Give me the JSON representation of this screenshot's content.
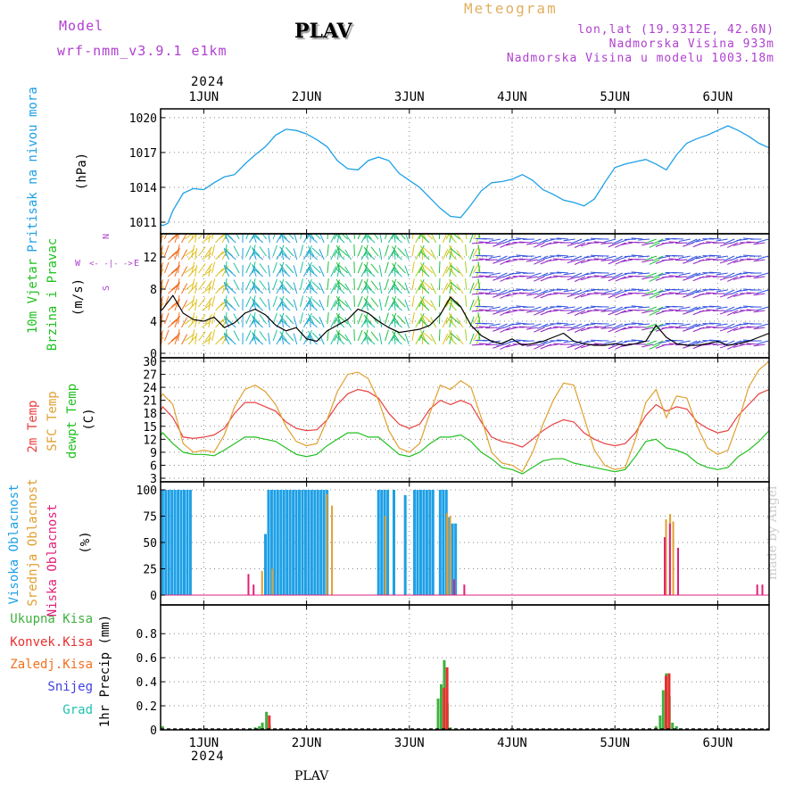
{
  "header": {
    "model_label": "Model",
    "model_name": "wrf-nmm_v3.9.1 e1km",
    "station": "PLAV",
    "meteogram": "Meteogram",
    "lonlat": "lon,lat (19.9312E, 42.6N)",
    "altitude": "Nadmorska Visina 933m",
    "altitude_model": "Nadmorska Visina u modelu 1003.18m",
    "year": "2024",
    "footer_station": "PLAV",
    "made_by": "made by Angel"
  },
  "colors": {
    "pressure": "#1ea0e6",
    "temp2m": "#e84040",
    "sfc": "#e0a030",
    "dewpt": "#20c020",
    "high_cloud": "#1ea0e6",
    "mid_cloud": "#e0a030",
    "low_cloud": "#e0207a",
    "rain": "#40b040",
    "convective": "#e83030",
    "freezing": "#f07020",
    "snow": "#4040e0",
    "hail": "#20c0b0",
    "axis_purple": "#b040d0"
  },
  "chart_data": [
    {
      "type": "line",
      "panel": "pressure",
      "ylabel_main": "Pritisak na nivou mora",
      "ylabel_unit": "(hPa)",
      "x_range_days": [
        0.58,
        6.5
      ],
      "x_ticks": [
        "1JUN",
        "2JUN",
        "3JUN",
        "4JUN",
        "5JUN",
        "6JUN"
      ],
      "ylim": [
        1010,
        1020.3
      ],
      "yticks": [
        1011,
        1014,
        1017,
        1020
      ],
      "grid": true,
      "series": [
        {
          "x": [
            0.5,
            0.55,
            0.6,
            0.65,
            0.7,
            0.8,
            0.9,
            1.0,
            1.1,
            1.2,
            1.3,
            1.4,
            1.5,
            1.6,
            1.7,
            1.8,
            1.9,
            2.0,
            2.1,
            2.2,
            2.3,
            2.4,
            2.5,
            2.6,
            2.7,
            2.8,
            2.9,
            3.0,
            3.1,
            3.2,
            3.3,
            3.4,
            3.5,
            3.6,
            3.7,
            3.8,
            3.9,
            4.0,
            4.1,
            4.2,
            4.3,
            4.4,
            4.5,
            4.6,
            4.7,
            4.8,
            4.9,
            5.0,
            5.1,
            5.2,
            5.3,
            5.4,
            5.5,
            5.6,
            5.7,
            5.8,
            5.9,
            6.0,
            6.1,
            6.2,
            6.3,
            6.4,
            6.5
          ],
          "values": [
            1012.3,
            1011.0,
            1010.7,
            1010.9,
            1012.0,
            1013.5,
            1013.9,
            1013.8,
            1014.4,
            1014.9,
            1015.1,
            1016.0,
            1016.8,
            1017.5,
            1018.5,
            1019.0,
            1018.9,
            1018.6,
            1018.1,
            1017.5,
            1016.3,
            1015.6,
            1015.5,
            1016.3,
            1016.6,
            1016.3,
            1015.2,
            1014.6,
            1014.0,
            1013.1,
            1012.2,
            1011.5,
            1011.4,
            1012.5,
            1013.7,
            1014.4,
            1014.5,
            1014.7,
            1015.1,
            1014.6,
            1013.8,
            1013.4,
            1012.9,
            1012.7,
            1012.4,
            1013.0,
            1014.4,
            1015.7,
            1016.0,
            1016.2,
            1016.4,
            1016.0,
            1015.5,
            1016.8,
            1017.8,
            1018.2,
            1018.5,
            1018.9,
            1019.3,
            1018.9,
            1018.4,
            1017.8,
            1017.4
          ]
        }
      ]
    },
    {
      "type": "line",
      "panel": "wind",
      "ylabel_main": "10m Vjetar",
      "ylabel_sub": "Brzina i Pravac",
      "ylabel_unit": "(m/s)",
      "compass": [
        "N",
        "W",
        "E",
        "S"
      ],
      "ylim": [
        0,
        14
      ],
      "yticks": [
        0,
        4,
        8,
        12
      ],
      "grid": true,
      "series": [
        {
          "x": [
            0.5,
            0.6,
            0.7,
            0.8,
            0.9,
            1.0,
            1.1,
            1.2,
            1.3,
            1.4,
            1.5,
            1.6,
            1.7,
            1.8,
            1.9,
            2.0,
            2.1,
            2.2,
            2.3,
            2.4,
            2.5,
            2.6,
            2.7,
            2.8,
            2.9,
            3.0,
            3.1,
            3.2,
            3.3,
            3.4,
            3.5,
            3.6,
            3.7,
            3.8,
            3.9,
            4.0,
            4.1,
            4.2,
            4.3,
            4.4,
            4.5,
            4.6,
            4.7,
            4.8,
            4.9,
            5.0,
            5.1,
            5.2,
            5.3,
            5.4,
            5.5,
            5.6,
            5.7,
            5.8,
            5.9,
            6.0,
            6.1,
            6.2,
            6.3,
            6.4,
            6.5
          ],
          "values": [
            4.5,
            5.5,
            7.2,
            5.0,
            4.2,
            4.0,
            4.5,
            3.2,
            3.8,
            5.0,
            5.5,
            4.8,
            3.5,
            2.8,
            3.2,
            1.8,
            1.5,
            2.8,
            3.5,
            4.2,
            5.5,
            5.0,
            4.0,
            3.2,
            2.6,
            2.8,
            3.0,
            3.5,
            4.8,
            7.0,
            5.8,
            3.5,
            2.2,
            1.5,
            1.2,
            1.8,
            1.0,
            1.2,
            1.5,
            2.0,
            2.5,
            1.5,
            1.2,
            1.0,
            1.0,
            1.2,
            1.0,
            1.2,
            1.5,
            3.5,
            2.0,
            1.2,
            1.0,
            1.0,
            1.2,
            1.5,
            1.0,
            1.2,
            1.5,
            2.0,
            2.5
          ]
        }
      ]
    },
    {
      "type": "line",
      "panel": "temperature",
      "ylabel_1": "2m Temp",
      "ylabel_2": "SFC Temp",
      "ylabel_3": "dewpt Temp",
      "ylabel_unit": "(C)",
      "ylim": [
        3,
        30
      ],
      "yticks": [
        3,
        6,
        9,
        12,
        15,
        18,
        21,
        24,
        27,
        30
      ],
      "grid": true,
      "series": [
        {
          "name": "2m Temp",
          "x": [
            0.5,
            0.6,
            0.7,
            0.8,
            0.9,
            1.0,
            1.1,
            1.2,
            1.3,
            1.4,
            1.5,
            1.6,
            1.7,
            1.8,
            1.9,
            2.0,
            2.1,
            2.2,
            2.3,
            2.4,
            2.5,
            2.6,
            2.7,
            2.8,
            2.9,
            3.0,
            3.1,
            3.2,
            3.3,
            3.4,
            3.5,
            3.6,
            3.7,
            3.8,
            3.9,
            4.0,
            4.1,
            4.2,
            4.3,
            4.4,
            4.5,
            4.6,
            4.7,
            4.8,
            4.9,
            5.0,
            5.1,
            5.2,
            5.3,
            5.4,
            5.5,
            5.6,
            5.7,
            5.8,
            5.9,
            6.0,
            6.1,
            6.2,
            6.3,
            6.4,
            6.5
          ],
          "values": [
            15.0,
            19.5,
            17.0,
            12.5,
            12.2,
            12.5,
            13.0,
            14.5,
            18.0,
            20.5,
            20.5,
            19.5,
            18.5,
            16.0,
            14.5,
            14.0,
            14.2,
            16.5,
            20.0,
            22.5,
            23.5,
            23.0,
            21.5,
            18.0,
            15.5,
            14.5,
            15.5,
            19.0,
            21.0,
            20.0,
            21.0,
            20.0,
            16.0,
            12.5,
            11.5,
            11.0,
            10.2,
            12.0,
            14.0,
            15.5,
            16.5,
            16.0,
            13.5,
            12.0,
            11.0,
            10.5,
            11.0,
            13.5,
            17.5,
            20.0,
            18.5,
            19.5,
            19.0,
            16.0,
            14.5,
            13.5,
            14.0,
            17.5,
            20.0,
            22.5,
            23.5
          ]
        },
        {
          "name": "SFC Temp",
          "x": [
            0.5,
            0.6,
            0.7,
            0.8,
            0.9,
            1.0,
            1.1,
            1.2,
            1.3,
            1.4,
            1.5,
            1.6,
            1.7,
            1.8,
            1.9,
            2.0,
            2.1,
            2.2,
            2.3,
            2.4,
            2.5,
            2.6,
            2.7,
            2.8,
            2.9,
            3.0,
            3.1,
            3.2,
            3.3,
            3.4,
            3.5,
            3.6,
            3.7,
            3.8,
            3.9,
            4.0,
            4.1,
            4.2,
            4.3,
            4.4,
            4.5,
            4.6,
            4.7,
            4.8,
            4.9,
            5.0,
            5.1,
            5.2,
            5.3,
            5.4,
            5.5,
            5.6,
            5.7,
            5.8,
            5.9,
            6.0,
            6.1,
            6.2,
            6.3,
            6.4,
            6.5
          ],
          "values": [
            18.0,
            22.5,
            20.0,
            11.0,
            9.0,
            9.5,
            9.0,
            13.0,
            19.5,
            23.5,
            24.5,
            23.0,
            20.0,
            15.0,
            11.5,
            10.5,
            11.0,
            16.5,
            23.0,
            27.0,
            27.5,
            26.0,
            21.0,
            14.0,
            10.0,
            9.0,
            11.0,
            18.0,
            24.5,
            23.5,
            25.5,
            24.0,
            17.0,
            9.0,
            6.5,
            6.0,
            4.5,
            9.0,
            15.5,
            21.0,
            25.0,
            24.5,
            17.0,
            9.5,
            6.0,
            5.0,
            5.5,
            12.0,
            20.5,
            23.5,
            17.0,
            22.0,
            21.5,
            15.0,
            10.0,
            8.5,
            9.5,
            16.0,
            24.0,
            28.0,
            30.0
          ]
        },
        {
          "name": "dewpt Temp",
          "x": [
            0.5,
            0.6,
            0.7,
            0.8,
            0.9,
            1.0,
            1.1,
            1.2,
            1.3,
            1.4,
            1.5,
            1.6,
            1.7,
            1.8,
            1.9,
            2.0,
            2.1,
            2.2,
            2.3,
            2.4,
            2.5,
            2.6,
            2.7,
            2.8,
            2.9,
            3.0,
            3.1,
            3.2,
            3.3,
            3.4,
            3.5,
            3.6,
            3.7,
            3.8,
            3.9,
            4.0,
            4.1,
            4.2,
            4.3,
            4.4,
            4.5,
            4.6,
            4.7,
            4.8,
            4.9,
            5.0,
            5.1,
            5.2,
            5.3,
            5.4,
            5.5,
            5.6,
            5.7,
            5.8,
            5.9,
            6.0,
            6.1,
            6.2,
            6.3,
            6.4,
            6.5
          ],
          "values": [
            10.5,
            13.5,
            11.0,
            9.0,
            8.5,
            8.5,
            8.2,
            9.5,
            11.0,
            12.5,
            12.5,
            12.0,
            11.5,
            10.0,
            8.5,
            8.0,
            8.5,
            10.5,
            12.0,
            13.5,
            13.5,
            12.5,
            12.5,
            10.5,
            8.5,
            8.0,
            9.0,
            11.0,
            12.5,
            12.5,
            13.0,
            11.5,
            9.0,
            7.5,
            5.5,
            5.0,
            4.0,
            5.5,
            7.0,
            7.5,
            7.5,
            6.5,
            6.0,
            5.5,
            5.0,
            4.5,
            5.0,
            8.0,
            11.5,
            12.0,
            10.0,
            9.5,
            8.5,
            6.5,
            5.5,
            5.0,
            5.5,
            8.0,
            9.5,
            11.5,
            14.0
          ]
        }
      ]
    },
    {
      "type": "bar",
      "panel": "clouds",
      "ylabel_1": "Visoka Oblacnost",
      "ylabel_2": "Srednja Oblacnost",
      "ylabel_3": "Niska Oblacnost",
      "ylabel_unit": "(%)",
      "ylim": [
        0,
        100
      ],
      "yticks": [
        0,
        25,
        50,
        75,
        100
      ],
      "grid": true,
      "series": [
        {
          "name": "Visoka Oblacnost",
          "x": [
            0.6,
            0.63,
            0.66,
            0.69,
            0.72,
            0.75,
            0.78,
            0.81,
            0.84,
            0.87,
            1.6,
            1.63,
            1.66,
            1.69,
            1.72,
            1.75,
            1.78,
            1.81,
            1.84,
            1.87,
            1.9,
            1.93,
            1.96,
            1.99,
            2.02,
            2.05,
            2.08,
            2.11,
            2.14,
            2.17,
            2.2,
            2.7,
            2.73,
            2.76,
            2.79,
            2.85,
            2.96,
            3.05,
            3.08,
            3.11,
            3.14,
            3.17,
            3.2,
            3.23,
            3.3,
            3.33,
            3.36,
            3.39,
            3.42,
            3.45
          ],
          "values": [
            100,
            100,
            100,
            100,
            100,
            100,
            100,
            100,
            100,
            100,
            58,
            100,
            100,
            100,
            100,
            100,
            100,
            100,
            100,
            100,
            100,
            100,
            100,
            100,
            100,
            100,
            100,
            100,
            100,
            100,
            100,
            100,
            100,
            100,
            100,
            100,
            95,
            100,
            100,
            100,
            100,
            100,
            100,
            100,
            100,
            100,
            100,
            74,
            68,
            68
          ]
        },
        {
          "name": "Srednja Oblacnost",
          "x": [
            1.55,
            1.65,
            2.18,
            2.23,
            2.75,
            3.35,
            3.38,
            5.48,
            5.52,
            5.55,
            6.5
          ],
          "values": [
            23,
            25,
            96,
            85,
            75,
            78,
            75,
            72,
            77,
            70,
            10
          ]
        },
        {
          "name": "Niska Oblacnost",
          "x": [
            1.4,
            1.45,
            3.4,
            3.5,
            5.45,
            5.5,
            5.58,
            6.35,
            6.4
          ],
          "values": [
            20,
            10,
            15,
            10,
            55,
            68,
            45,
            10,
            10
          ]
        }
      ]
    },
    {
      "type": "bar",
      "panel": "precip",
      "ylabel_1": "Ukupna Kisa",
      "ylabel_2": "Konvek.Kisa",
      "ylabel_3": "Zaledj.Kisa",
      "ylabel_4": "Snijeg",
      "ylabel_5": "Grad",
      "ylabel_unit": "1hr Precip (mm)",
      "ylim": [
        0,
        0.95
      ],
      "yticks": [
        0,
        0.2,
        0.4,
        0.6,
        0.8
      ],
      "grid": true,
      "series": [
        {
          "name": "Ukupna Kisa",
          "x": [
            0.6,
            1.5,
            1.54,
            1.57,
            1.61,
            1.64,
            3.28,
            3.31,
            3.34,
            3.37,
            3.4,
            5.4,
            5.44,
            5.47,
            5.5,
            5.53,
            5.56,
            5.6
          ],
          "values": [
            0.03,
            0.02,
            0.03,
            0.06,
            0.15,
            0.04,
            0.26,
            0.38,
            0.58,
            0.22,
            0.02,
            0.03,
            0.12,
            0.33,
            0.47,
            0.28,
            0.06,
            0.03
          ]
        },
        {
          "name": "Konvek.Kisa",
          "x": [
            1.62,
            3.32,
            3.35,
            5.48,
            5.51
          ],
          "values": [
            0.12,
            0.35,
            0.52,
            0.45,
            0.47
          ]
        }
      ]
    }
  ]
}
